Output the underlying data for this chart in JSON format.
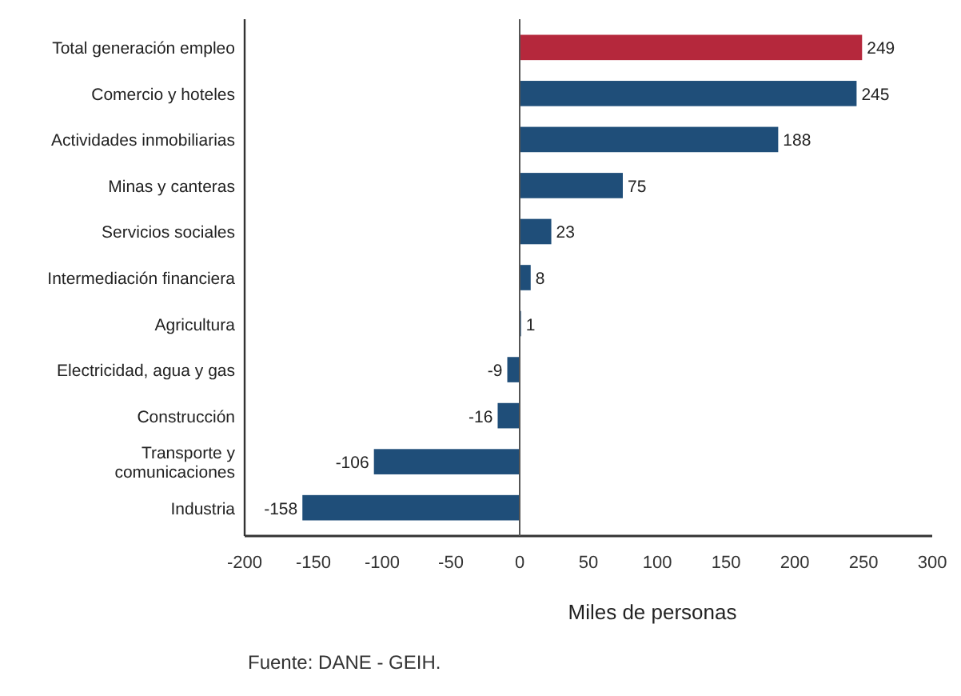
{
  "chart_data": {
    "type": "bar",
    "orientation": "horizontal",
    "xlabel": "Miles de personas",
    "categories": [
      "Total generación empleo",
      "Comercio y hoteles",
      "Actividades inmobiliarias",
      "Minas y canteras",
      "Servicios sociales",
      "Intermediación financiera",
      "Agricultura",
      "Electricidad, agua y gas",
      "Construcción",
      "Transporte y\ncomunicaciones",
      "Industria"
    ],
    "values": [
      249,
      245,
      188,
      75,
      23,
      8,
      1,
      -9,
      -16,
      -106,
      -158
    ],
    "colors": [
      "#b5283c",
      "#1f4e79",
      "#1f4e79",
      "#1f4e79",
      "#1f4e79",
      "#1f4e79",
      "#1f4e79",
      "#1f4e79",
      "#1f4e79",
      "#1f4e79",
      "#1f4e79"
    ],
    "xlim": [
      -200,
      300
    ],
    "xticks": [
      -200,
      -150,
      -100,
      -50,
      0,
      50,
      100,
      150,
      200,
      250,
      300
    ],
    "data_labels": true,
    "ref_lines": [
      {
        "axis": "x",
        "value": 0
      }
    ],
    "annotations": [
      "Fuente: DANE - GEIH."
    ]
  }
}
